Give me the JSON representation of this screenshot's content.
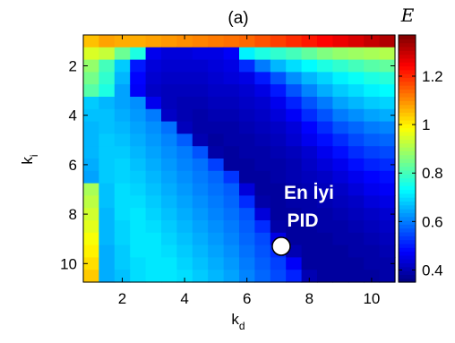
{
  "chart_data": {
    "type": "heatmap",
    "title": "(a)",
    "xlabel": "k",
    "xlabel_sub": "d",
    "ylabel": "k",
    "ylabel_sub": "i",
    "colorbar_label": "E",
    "x": [
      1,
      1.5,
      2,
      2.5,
      3,
      3.5,
      4,
      4.5,
      5,
      5.5,
      6,
      6.5,
      7,
      7.5,
      8,
      8.5,
      9,
      9.5,
      10,
      10.5
    ],
    "y": [
      1,
      1.5,
      2,
      2.5,
      3,
      3.5,
      4,
      4.5,
      5,
      5.5,
      6,
      6.5,
      7,
      7.5,
      8,
      8.5,
      9,
      9.5,
      10,
      10.5
    ],
    "xlim": [
      0.75,
      10.75
    ],
    "ylim": [
      0.75,
      10.75
    ],
    "y_reversed": true,
    "xticks": [
      "2",
      "4",
      "6",
      "8",
      "10"
    ],
    "yticks": [
      "2",
      "4",
      "6",
      "8",
      "10"
    ],
    "colorbar_ticks": [
      "0.4",
      "0.6",
      "0.8",
      "1",
      "1.2"
    ],
    "clim": [
      0.35,
      1.37
    ],
    "colormap": "jet",
    "values": [
      [
        1.05,
        1.08,
        1.07,
        1.07,
        1.08,
        1.09,
        1.1,
        1.11,
        1.12,
        1.13,
        1.14,
        1.16,
        1.18,
        1.2,
        1.22,
        1.24,
        1.26,
        1.28,
        1.3,
        1.32
      ],
      [
        0.95,
        0.93,
        0.84,
        0.76,
        0.46,
        0.44,
        0.44,
        0.45,
        0.45,
        0.47,
        0.72,
        0.76,
        0.78,
        0.8,
        0.83,
        0.86,
        0.88,
        0.89,
        0.9,
        0.91
      ],
      [
        0.88,
        0.8,
        0.68,
        0.5,
        0.44,
        0.43,
        0.43,
        0.43,
        0.44,
        0.45,
        0.52,
        0.6,
        0.66,
        0.7,
        0.73,
        0.76,
        0.78,
        0.8,
        0.82,
        0.83
      ],
      [
        0.85,
        0.78,
        0.66,
        0.48,
        0.43,
        0.42,
        0.42,
        0.42,
        0.43,
        0.44,
        0.45,
        0.5,
        0.56,
        0.62,
        0.66,
        0.69,
        0.72,
        0.74,
        0.76,
        0.77
      ],
      [
        0.82,
        0.76,
        0.64,
        0.47,
        0.42,
        0.41,
        0.41,
        0.41,
        0.42,
        0.42,
        0.43,
        0.45,
        0.5,
        0.56,
        0.61,
        0.65,
        0.68,
        0.7,
        0.72,
        0.73
      ],
      [
        0.68,
        0.66,
        0.64,
        0.62,
        0.46,
        0.41,
        0.4,
        0.4,
        0.41,
        0.41,
        0.42,
        0.43,
        0.46,
        0.51,
        0.56,
        0.6,
        0.64,
        0.66,
        0.68,
        0.69
      ],
      [
        0.67,
        0.67,
        0.65,
        0.63,
        0.6,
        0.42,
        0.4,
        0.39,
        0.4,
        0.4,
        0.41,
        0.42,
        0.44,
        0.47,
        0.52,
        0.56,
        0.6,
        0.62,
        0.64,
        0.65
      ],
      [
        0.66,
        0.67,
        0.66,
        0.64,
        0.62,
        0.59,
        0.41,
        0.39,
        0.39,
        0.39,
        0.4,
        0.41,
        0.42,
        0.44,
        0.48,
        0.52,
        0.56,
        0.58,
        0.6,
        0.61
      ],
      [
        0.66,
        0.68,
        0.67,
        0.65,
        0.63,
        0.61,
        0.57,
        0.4,
        0.38,
        0.39,
        0.39,
        0.4,
        0.41,
        0.43,
        0.46,
        0.49,
        0.52,
        0.55,
        0.57,
        0.58
      ],
      [
        0.66,
        0.68,
        0.68,
        0.66,
        0.64,
        0.62,
        0.6,
        0.56,
        0.39,
        0.38,
        0.39,
        0.39,
        0.4,
        0.41,
        0.43,
        0.46,
        0.49,
        0.52,
        0.54,
        0.55
      ],
      [
        0.65,
        0.68,
        0.69,
        0.67,
        0.65,
        0.63,
        0.61,
        0.59,
        0.54,
        0.38,
        0.38,
        0.39,
        0.39,
        0.4,
        0.42,
        0.44,
        0.46,
        0.49,
        0.51,
        0.52
      ],
      [
        0.64,
        0.68,
        0.69,
        0.68,
        0.66,
        0.64,
        0.62,
        0.6,
        0.58,
        0.53,
        0.38,
        0.38,
        0.39,
        0.4,
        0.41,
        0.42,
        0.44,
        0.46,
        0.48,
        0.49
      ],
      [
        0.9,
        0.67,
        0.7,
        0.69,
        0.67,
        0.65,
        0.63,
        0.61,
        0.59,
        0.57,
        0.44,
        0.38,
        0.38,
        0.39,
        0.4,
        0.41,
        0.42,
        0.44,
        0.46,
        0.47
      ],
      [
        0.92,
        0.67,
        0.7,
        0.7,
        0.68,
        0.66,
        0.64,
        0.62,
        0.6,
        0.58,
        0.52,
        0.39,
        0.38,
        0.39,
        0.39,
        0.4,
        0.41,
        0.42,
        0.44,
        0.45
      ],
      [
        0.94,
        0.66,
        0.7,
        0.71,
        0.69,
        0.67,
        0.65,
        0.63,
        0.61,
        0.59,
        0.56,
        0.44,
        0.38,
        0.38,
        0.39,
        0.39,
        0.4,
        0.41,
        0.42,
        0.43
      ],
      [
        0.96,
        0.66,
        0.69,
        0.71,
        0.7,
        0.68,
        0.66,
        0.64,
        0.62,
        0.6,
        0.57,
        0.52,
        0.39,
        0.38,
        0.38,
        0.39,
        0.39,
        0.4,
        0.41,
        0.42
      ],
      [
        0.98,
        0.66,
        0.69,
        0.71,
        0.71,
        0.69,
        0.67,
        0.65,
        0.63,
        0.61,
        0.58,
        0.55,
        0.45,
        0.38,
        0.38,
        0.38,
        0.39,
        0.39,
        0.4,
        0.41
      ],
      [
        1.0,
        0.65,
        0.68,
        0.71,
        0.71,
        0.7,
        0.68,
        0.66,
        0.64,
        0.62,
        0.59,
        0.56,
        0.52,
        0.4,
        0.38,
        0.38,
        0.38,
        0.39,
        0.39,
        0.4
      ],
      [
        1.02,
        0.65,
        0.68,
        0.7,
        0.71,
        0.71,
        0.69,
        0.67,
        0.65,
        0.63,
        0.6,
        0.57,
        0.54,
        0.47,
        0.38,
        0.38,
        0.38,
        0.38,
        0.39,
        0.39
      ],
      [
        1.04,
        0.65,
        0.67,
        0.7,
        0.71,
        0.71,
        0.7,
        0.68,
        0.66,
        0.64,
        0.61,
        0.58,
        0.55,
        0.51,
        0.4,
        0.38,
        0.38,
        0.38,
        0.38,
        0.39
      ]
    ],
    "marker": {
      "x": 7.1,
      "y": 9.3,
      "label_line1": "En İyi",
      "label_line2": "PID"
    }
  }
}
